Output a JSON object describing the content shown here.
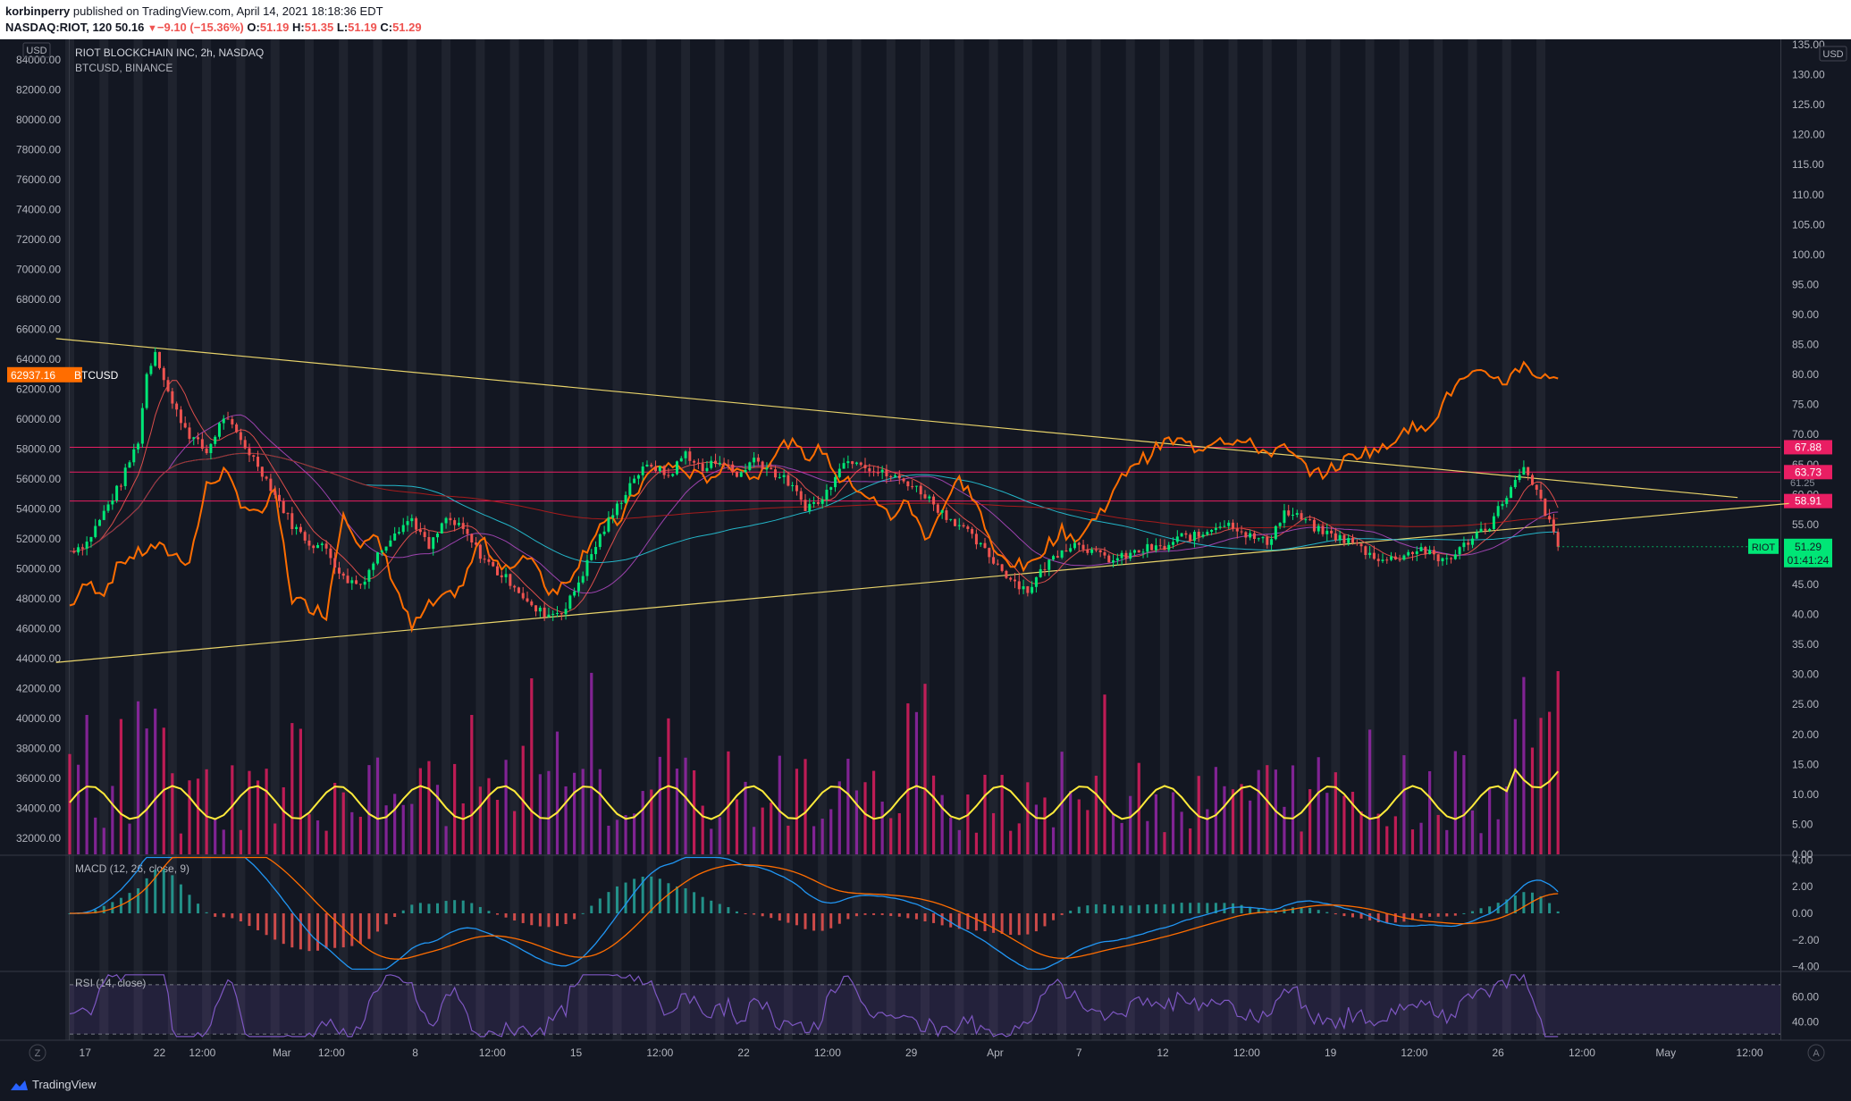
{
  "header": {
    "author": "korbinperry",
    "published_text": "published on TradingView.com, April 14, 2021 18:18:36 EDT",
    "symbol": "NASDAQ:RIOT, 120",
    "price": "50.16",
    "change": "−9.10 (−15.36%)",
    "o_label": "O:",
    "o_value": "51.19",
    "h_label": "H:",
    "h_value": "51.35",
    "l_label": "L:",
    "l_value": "51.19",
    "c_label": "C:",
    "c_value": "51.29"
  },
  "footer": {
    "brand": "TradingView",
    "corner_z": "Z",
    "corner_a": "A"
  },
  "colors": {
    "background": "#131722",
    "up": "#26a69a",
    "up_bright": "#00e676",
    "down": "#ef5350",
    "btc": "#ff6d00",
    "trend": "#e8d36a",
    "resistance": "#e91e63",
    "ma_teal": "#26c6da",
    "ma_purple": "#ab47bc",
    "ma_red": "#b71c1c",
    "macd": "#2196f3",
    "signal": "#ff6d00",
    "rsi": "#7e57c2",
    "vol_ma": "#ffeb3b"
  },
  "chart_data": [
    {
      "type": "line",
      "panel": "main",
      "title": "RIOT BLOCKCHAIN INC, 2h, NASDAQ",
      "overlay_label": "BTCUSD, BINANCE",
      "left_axis_unit": "USD",
      "left_axis_ticks": [
        "84000.00",
        "82000.00",
        "80000.00",
        "78000.00",
        "76000.00",
        "74000.00",
        "72000.00",
        "70000.00",
        "68000.00",
        "66000.00",
        "64000.00",
        "62000.00",
        "60000.00",
        "58000.00",
        "56000.00",
        "54000.00",
        "52000.00",
        "50000.00",
        "48000.00",
        "46000.00",
        "44000.00",
        "42000.00",
        "40000.00",
        "38000.00",
        "36000.00",
        "34000.00",
        "32000.00"
      ],
      "right_axis_ticks": [
        "135.00",
        "130.00",
        "125.00",
        "120.00",
        "115.00",
        "110.00",
        "105.00",
        "100.00",
        "95.00",
        "90.00",
        "85.00",
        "80.00",
        "75.00",
        "70.00",
        "65.00",
        "60.00",
        "55.00",
        "50.00",
        "45.00",
        "40.00",
        "35.00",
        "30.00",
        "25.00",
        "20.00",
        "15.00",
        "10.00",
        "5.00",
        "0.00"
      ],
      "right_axis_currency": "USD",
      "ylim_left": [
        31000,
        85000
      ],
      "ylim_right": [
        0,
        135
      ],
      "x_labels": [
        {
          "label": "17",
          "d": 0.9
        },
        {
          "label": "22",
          "d": 5.25
        },
        {
          "label": "12:00",
          "d": 7.75
        },
        {
          "label": "Mar",
          "d": 12.4
        },
        {
          "label": "12:00",
          "d": 15.3
        },
        {
          "label": "8",
          "d": 20.2
        },
        {
          "label": "12:00",
          "d": 24.7
        },
        {
          "label": "15",
          "d": 29.6
        },
        {
          "label": "12:00",
          "d": 34.5
        },
        {
          "label": "22",
          "d": 39.4
        },
        {
          "label": "12:00",
          "d": 44.3
        },
        {
          "label": "29",
          "d": 49.2
        },
        {
          "label": "Apr",
          "d": 54.1
        },
        {
          "label": "7",
          "d": 59.0
        },
        {
          "label": "12",
          "d": 63.9
        },
        {
          "label": "12:00",
          "d": 68.8
        },
        {
          "label": "19",
          "d": 73.7
        },
        {
          "label": "12:00",
          "d": 78.6
        },
        {
          "label": "26",
          "d": 83.5
        },
        {
          "label": "12:00",
          "d": 88.4
        },
        {
          "label": "May",
          "d": 93.3
        },
        {
          "label": "12:00",
          "d": 98.2
        }
      ],
      "riot_close": [
        [
          0,
          50.6
        ],
        [
          1,
          52
        ],
        [
          2,
          57
        ],
        [
          3,
          62
        ],
        [
          4,
          69
        ],
        [
          4.5,
          80
        ],
        [
          5,
          84
        ],
        [
          6,
          75
        ],
        [
          7,
          70
        ],
        [
          8,
          67
        ],
        [
          9,
          73
        ],
        [
          10,
          69
        ],
        [
          11,
          65
        ],
        [
          12,
          60
        ],
        [
          13,
          55
        ],
        [
          14,
          52
        ],
        [
          15,
          51
        ],
        [
          16,
          46
        ],
        [
          17,
          45
        ],
        [
          18,
          50
        ],
        [
          19,
          54
        ],
        [
          20,
          56
        ],
        [
          21,
          51
        ],
        [
          22,
          56
        ],
        [
          23,
          54
        ],
        [
          24,
          50
        ],
        [
          25,
          47
        ],
        [
          26,
          45
        ],
        [
          27,
          41
        ],
        [
          28,
          40
        ],
        [
          29,
          41
        ],
        [
          30,
          47
        ],
        [
          31,
          53
        ],
        [
          32,
          58
        ],
        [
          33,
          63
        ],
        [
          34,
          65
        ],
        [
          35,
          63
        ],
        [
          36,
          67
        ],
        [
          37,
          64
        ],
        [
          38,
          66
        ],
        [
          39,
          63
        ],
        [
          40,
          66
        ],
        [
          41,
          64
        ],
        [
          42,
          62
        ],
        [
          43,
          58
        ],
        [
          44,
          59
        ],
        [
          45,
          65
        ],
        [
          46,
          66
        ],
        [
          47,
          64
        ],
        [
          48,
          63
        ],
        [
          49,
          62
        ],
        [
          50,
          60
        ],
        [
          51,
          57
        ],
        [
          52,
          55
        ],
        [
          53,
          52
        ],
        [
          54,
          49
        ],
        [
          55,
          46
        ],
        [
          56,
          44
        ],
        [
          57,
          48
        ],
        [
          58,
          51
        ],
        [
          59,
          52
        ],
        [
          60,
          50
        ],
        [
          61,
          49
        ],
        [
          62,
          50
        ],
        [
          63,
          51
        ],
        [
          64,
          51
        ],
        [
          65,
          53
        ],
        [
          66,
          53
        ],
        [
          67,
          55
        ],
        [
          68,
          55
        ],
        [
          69,
          53
        ],
        [
          70,
          52
        ],
        [
          71,
          57
        ],
        [
          72,
          56
        ],
        [
          73,
          54
        ],
        [
          74,
          53
        ],
        [
          75,
          52
        ],
        [
          76,
          50
        ],
        [
          77,
          49
        ],
        [
          78,
          50
        ],
        [
          79,
          51
        ],
        [
          80,
          49
        ],
        [
          81,
          50
        ],
        [
          82,
          53
        ],
        [
          83,
          55
        ],
        [
          84,
          60
        ],
        [
          85,
          64
        ],
        [
          86,
          59
        ],
        [
          87,
          51.3
        ]
      ],
      "btc_close": [
        [
          0,
          47500
        ],
        [
          1,
          49000
        ],
        [
          2,
          48500
        ],
        [
          3,
          50500
        ],
        [
          4,
          51000
        ],
        [
          5,
          51500
        ],
        [
          6,
          51000
        ],
        [
          7,
          50500
        ],
        [
          8,
          55500
        ],
        [
          9,
          56500
        ],
        [
          10,
          54500
        ],
        [
          11,
          53500
        ],
        [
          12,
          55000
        ],
        [
          13,
          48000
        ],
        [
          14,
          47500
        ],
        [
          15,
          47000
        ],
        [
          16,
          54000
        ],
        [
          17,
          51500
        ],
        [
          18,
          52000
        ],
        [
          19,
          49000
        ],
        [
          20,
          46000
        ],
        [
          21,
          47500
        ],
        [
          22,
          48000
        ],
        [
          23,
          49000
        ],
        [
          24,
          52000
        ],
        [
          25,
          50500
        ],
        [
          26,
          50000
        ],
        [
          27,
          51000
        ],
        [
          28,
          48500
        ],
        [
          29,
          49000
        ],
        [
          30,
          51000
        ],
        [
          31,
          53000
        ],
        [
          32,
          53000
        ],
        [
          33,
          55000
        ],
        [
          34,
          56500
        ],
        [
          35,
          57000
        ],
        [
          36,
          56500
        ],
        [
          37,
          56000
        ],
        [
          38,
          56500
        ],
        [
          39,
          57000
        ],
        [
          40,
          56000
        ],
        [
          41,
          57500
        ],
        [
          42,
          58500
        ],
        [
          43,
          57500
        ],
        [
          44,
          58000
        ],
        [
          45,
          56000
        ],
        [
          46,
          55500
        ],
        [
          47,
          54500
        ],
        [
          48,
          53500
        ],
        [
          49,
          54500
        ],
        [
          50,
          52000
        ],
        [
          51,
          54000
        ],
        [
          52,
          56000
        ],
        [
          53,
          54500
        ],
        [
          54,
          51000
        ],
        [
          55,
          50500
        ],
        [
          56,
          50000
        ],
        [
          57,
          51500
        ],
        [
          58,
          52500
        ],
        [
          59,
          52000
        ],
        [
          60,
          53500
        ],
        [
          61,
          55000
        ],
        [
          62,
          57000
        ],
        [
          63,
          57500
        ],
        [
          64,
          58500
        ],
        [
          65,
          58500
        ],
        [
          66,
          58000
        ],
        [
          67,
          58800
        ],
        [
          68,
          58600
        ],
        [
          69,
          58300
        ],
        [
          70,
          57800
        ],
        [
          71,
          58000
        ],
        [
          72,
          57000
        ],
        [
          73,
          56300
        ],
        [
          74,
          56800
        ],
        [
          75,
          57600
        ],
        [
          76,
          57900
        ],
        [
          77,
          58000
        ],
        [
          78,
          59600
        ],
        [
          79,
          59200
        ],
        [
          80,
          60500
        ],
        [
          81,
          62300
        ],
        [
          82,
          62800
        ],
        [
          83,
          63000
        ],
        [
          84,
          62500
        ],
        [
          85,
          63800
        ],
        [
          86,
          62700
        ],
        [
          87,
          62937
        ]
      ],
      "btc_last_label": "62937.16",
      "btc_last_tag": "BTCUSD",
      "riot_last_label": "51.29",
      "riot_tag": "RIOT",
      "countdown": "01:41:24",
      "horizontal_levels": [
        {
          "value": 67.88,
          "label": "67.88"
        },
        {
          "value": 63.73,
          "label": "63.73"
        },
        {
          "value": 58.91,
          "label": "58.91"
        }
      ],
      "hidden_label": "61.25",
      "trendlines": [
        {
          "from": [
            -0.8,
            86
          ],
          "to": [
            97.5,
            59.5
          ]
        },
        {
          "from": [
            -0.8,
            32
          ],
          "to": [
            100.5,
            58.5
          ]
        }
      ]
    },
    {
      "type": "bar",
      "panel": "volume",
      "vol_max": 10
    },
    {
      "type": "line",
      "panel": "macd",
      "title": "MACD (12, 26, close, 9)",
      "yticks": [
        "4.00",
        "2.00",
        "0.00",
        "−2.00",
        "−4.00"
      ],
      "ylim": [
        -4,
        4
      ]
    },
    {
      "type": "line",
      "panel": "rsi",
      "title": "RSI (14, close)",
      "yticks": [
        "60.00",
        "40.00"
      ],
      "ylim": [
        25,
        80
      ]
    }
  ]
}
